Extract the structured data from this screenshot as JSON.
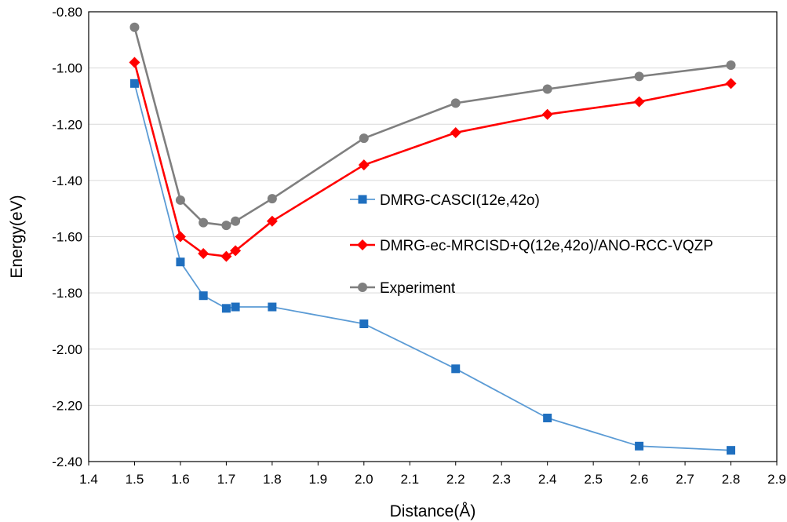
{
  "chart_data": {
    "type": "line",
    "title": "",
    "xlabel": "Distance(Å)",
    "ylabel": "Energy(eV)",
    "xlim": [
      1.4,
      2.9
    ],
    "ylim": [
      -2.4,
      -0.8
    ],
    "xticks": [
      "1.4",
      "1.5",
      "1.6",
      "1.7",
      "1.8",
      "1.9",
      "2.0",
      "2.1",
      "2.2",
      "2.3",
      "2.4",
      "2.5",
      "2.6",
      "2.7",
      "2.8",
      "2.9"
    ],
    "yticks": [
      "-0.80",
      "-1.00",
      "-1.20",
      "-1.40",
      "-1.60",
      "-1.80",
      "-2.00",
      "-2.20",
      "-2.40"
    ],
    "grid": "horizontal",
    "legend_position": "center-right",
    "series": [
      {
        "name": "DMRG-CASCI(12e,42o)",
        "color": "#5b9bd5",
        "marker_color": "#1f6fbf",
        "marker": "square",
        "x": [
          1.5,
          1.6,
          1.65,
          1.7,
          1.72,
          1.8,
          2.0,
          2.2,
          2.4,
          2.6,
          2.8
        ],
        "y": [
          -1.055,
          -1.69,
          -1.81,
          -1.855,
          -1.85,
          -1.85,
          -1.91,
          -2.07,
          -2.245,
          -2.345,
          -2.36
        ]
      },
      {
        "name": "DMRG-ec-MRCISD+Q(12e,42o)/ANO-RCC-VQZP",
        "color": "#ff0000",
        "marker_color": "#ff0000",
        "marker": "diamond",
        "x": [
          1.5,
          1.6,
          1.65,
          1.7,
          1.72,
          1.8,
          2.0,
          2.2,
          2.4,
          2.6,
          2.8
        ],
        "y": [
          -0.98,
          -1.6,
          -1.66,
          -1.67,
          -1.65,
          -1.545,
          -1.345,
          -1.23,
          -1.165,
          -1.12,
          -1.055
        ]
      },
      {
        "name": "Experiment",
        "color": "#7f7f7f",
        "marker_color": "#7f7f7f",
        "marker": "circle",
        "x": [
          1.5,
          1.6,
          1.65,
          1.7,
          1.72,
          1.8,
          2.0,
          2.2,
          2.4,
          2.6,
          2.8
        ],
        "y": [
          -0.855,
          -1.47,
          -1.55,
          -1.56,
          -1.545,
          -1.465,
          -1.25,
          -1.125,
          -1.075,
          -1.03,
          -0.99
        ]
      }
    ]
  }
}
